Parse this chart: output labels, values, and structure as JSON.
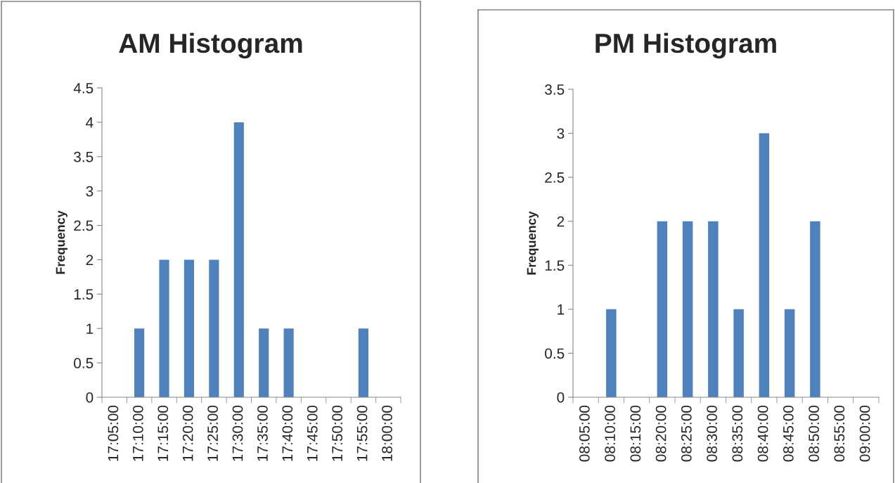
{
  "chart_data": [
    {
      "type": "bar",
      "title": "AM Histogram",
      "ylabel": "Frequency",
      "categories": [
        "17:05:00",
        "17:10:00",
        "17:15:00",
        "17:20:00",
        "17:25:00",
        "17:30:00",
        "17:35:00",
        "17:40:00",
        "17:45:00",
        "17:50:00",
        "17:55:00",
        "18:00:00"
      ],
      "values": [
        0,
        1,
        2,
        2,
        2,
        4,
        1,
        1,
        0,
        0,
        1,
        0
      ],
      "color": "#4f81bd",
      "ylim": [
        0,
        4.5
      ],
      "yticks": [
        0,
        0.5,
        1,
        1.5,
        2,
        2.5,
        3,
        3.5,
        4,
        4.5
      ],
      "grid": false,
      "legend": false
    },
    {
      "type": "bar",
      "title": "PM Histogram",
      "ylabel": "Frequency",
      "categories": [
        "08:05:00",
        "08:10:00",
        "08:15:00",
        "08:20:00",
        "08:25:00",
        "08:30:00",
        "08:35:00",
        "08:40:00",
        "08:45:00",
        "08:50:00",
        "08:55:00",
        "09:00:00"
      ],
      "values": [
        0,
        1,
        0,
        2,
        2,
        2,
        1,
        3,
        1,
        2,
        0,
        0
      ],
      "color": "#4f81bd",
      "ylim": [
        0,
        3.5
      ],
      "yticks": [
        0,
        0.5,
        1,
        1.5,
        2,
        2.5,
        3,
        3.5
      ],
      "grid": false,
      "legend": false
    }
  ]
}
